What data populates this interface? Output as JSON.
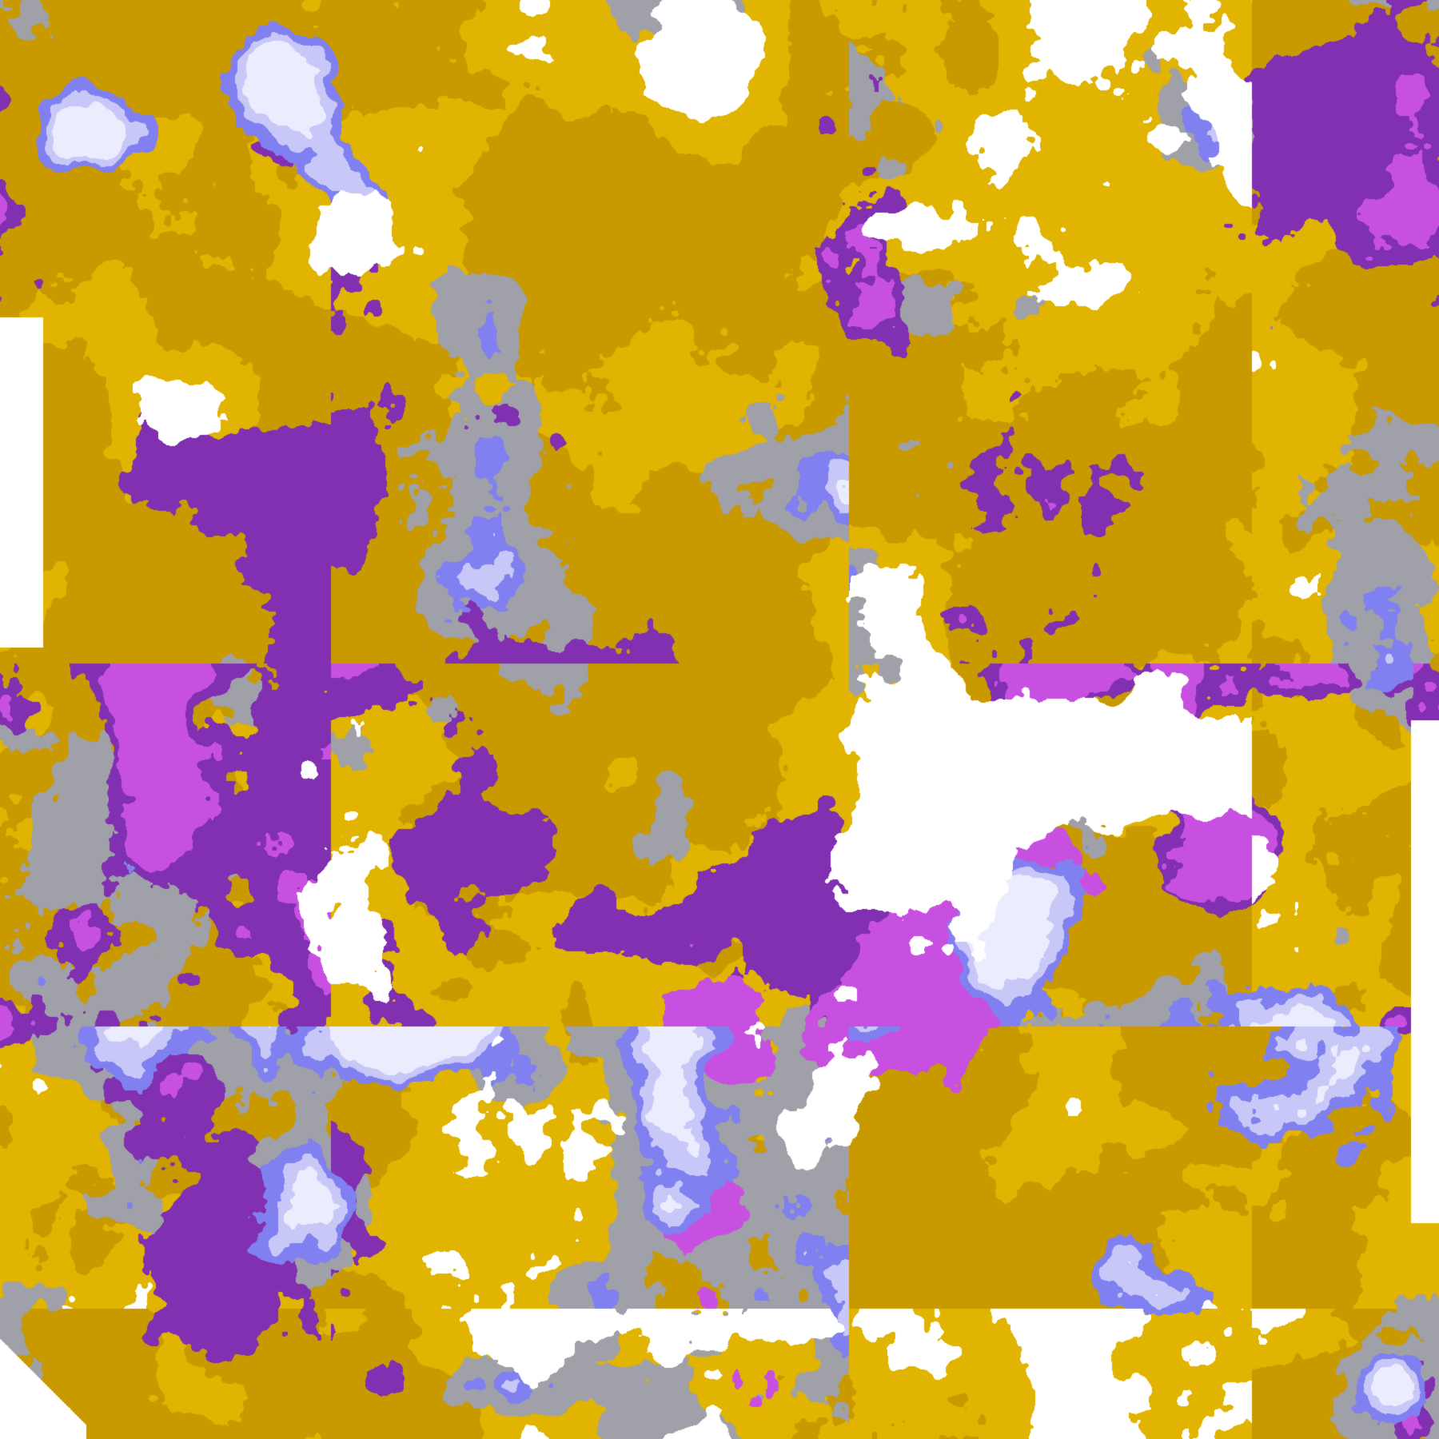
{
  "image": {
    "kind": "false-color satellite cloud classification",
    "background": "#ffffff",
    "palette": {
      "clear": "#ffffff",
      "gold": "#e0b400",
      "gold_dark": "#c89a00",
      "gray": "#a0a0a8",
      "lavender_light": "#ececff",
      "lavender": "#c8c8f8",
      "periwinkle": "#8080f0",
      "magenta": "#c850e0",
      "purple": "#8030b0"
    }
  }
}
